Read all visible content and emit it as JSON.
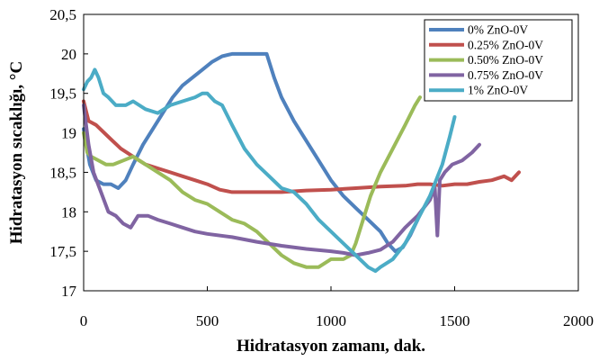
{
  "chart_data": {
    "type": "line",
    "title": "",
    "xlabel": "Hidratasyon zamanı, dak.",
    "ylabel": "Hidratasyon sıcaklığı, °C",
    "xlim": [
      0,
      2000
    ],
    "ylim": [
      17,
      20.5
    ],
    "xticks": [
      0,
      500,
      1000,
      1500,
      2000
    ],
    "yticks": [
      17,
      17.5,
      18,
      18.5,
      19,
      19.5,
      20,
      20.5
    ],
    "xtick_labels": [
      "0",
      "500",
      "1000",
      "1500",
      "2000"
    ],
    "ytick_labels": [
      "17",
      "17,5",
      "18",
      "18,5",
      "19",
      "19,5",
      "20",
      "20,5"
    ],
    "grid": false,
    "legend_position": "top-right",
    "series": [
      {
        "name": "0% ZnO-0V",
        "color": "#4F81BD",
        "x": [
          0,
          25,
          50,
          80,
          110,
          140,
          170,
          200,
          240,
          280,
          320,
          360,
          400,
          440,
          480,
          520,
          560,
          600,
          650,
          700,
          740,
          770,
          800,
          850,
          900,
          950,
          1000,
          1050,
          1100,
          1150,
          1200,
          1230,
          1260,
          1290,
          1320,
          1350
        ],
        "y": [
          19.05,
          18.6,
          18.4,
          18.35,
          18.35,
          18.3,
          18.4,
          18.6,
          18.85,
          19.05,
          19.25,
          19.45,
          19.6,
          19.7,
          19.8,
          19.9,
          19.97,
          20.0,
          20.0,
          20.0,
          20.0,
          19.7,
          19.45,
          19.15,
          18.9,
          18.65,
          18.4,
          18.2,
          18.05,
          17.9,
          17.75,
          17.6,
          17.5,
          17.55,
          17.7,
          17.9
        ]
      },
      {
        "name": "0.25% ZnO-0V",
        "color": "#C0504D",
        "x": [
          0,
          20,
          50,
          100,
          150,
          200,
          250,
          300,
          350,
          400,
          450,
          500,
          550,
          600,
          650,
          700,
          750,
          800,
          900,
          1000,
          1100,
          1200,
          1300,
          1350,
          1400,
          1450,
          1500,
          1550,
          1600,
          1650,
          1700,
          1730,
          1760
        ],
        "y": [
          19.4,
          19.15,
          19.1,
          18.95,
          18.8,
          18.7,
          18.6,
          18.55,
          18.5,
          18.45,
          18.4,
          18.35,
          18.28,
          18.25,
          18.25,
          18.25,
          18.25,
          18.25,
          18.27,
          18.28,
          18.3,
          18.32,
          18.33,
          18.35,
          18.35,
          18.33,
          18.35,
          18.35,
          18.38,
          18.4,
          18.45,
          18.4,
          18.5
        ]
      },
      {
        "name": "0.50% ZnO-0V",
        "color": "#9BBB59",
        "x": [
          0,
          15,
          30,
          60,
          90,
          120,
          160,
          200,
          250,
          300,
          350,
          400,
          450,
          500,
          550,
          600,
          650,
          700,
          750,
          800,
          850,
          900,
          950,
          1000,
          1050,
          1080,
          1100,
          1130,
          1160,
          1200,
          1250,
          1300,
          1340,
          1360
        ],
        "y": [
          19.0,
          18.75,
          18.7,
          18.65,
          18.6,
          18.6,
          18.65,
          18.7,
          18.6,
          18.5,
          18.4,
          18.25,
          18.15,
          18.1,
          18.0,
          17.9,
          17.85,
          17.75,
          17.6,
          17.45,
          17.35,
          17.3,
          17.3,
          17.4,
          17.4,
          17.45,
          17.6,
          17.9,
          18.2,
          18.5,
          18.8,
          19.1,
          19.35,
          19.45
        ]
      },
      {
        "name": "0.75% ZnO-0V",
        "color": "#8064A2",
        "x": [
          0,
          20,
          40,
          70,
          100,
          130,
          160,
          190,
          220,
          260,
          300,
          350,
          400,
          450,
          500,
          600,
          700,
          800,
          900,
          1000,
          1050,
          1100,
          1150,
          1200,
          1250,
          1300,
          1350,
          1400,
          1420,
          1430,
          1440,
          1460,
          1490,
          1530,
          1570,
          1600
        ],
        "y": [
          19.35,
          18.85,
          18.5,
          18.25,
          18.0,
          17.95,
          17.85,
          17.8,
          17.95,
          17.95,
          17.9,
          17.85,
          17.8,
          17.75,
          17.72,
          17.68,
          17.62,
          17.57,
          17.53,
          17.5,
          17.48,
          17.45,
          17.48,
          17.52,
          17.62,
          17.8,
          17.95,
          18.15,
          18.3,
          17.7,
          18.4,
          18.5,
          18.6,
          18.65,
          18.75,
          18.85
        ]
      },
      {
        "name": "1% ZnO-0V",
        "color": "#4BACC6",
        "x": [
          0,
          15,
          30,
          45,
          60,
          80,
          100,
          130,
          170,
          200,
          250,
          300,
          350,
          400,
          450,
          480,
          500,
          530,
          560,
          600,
          650,
          700,
          750,
          800,
          850,
          900,
          950,
          1000,
          1050,
          1100,
          1150,
          1180,
          1200,
          1250,
          1300,
          1350,
          1400,
          1450,
          1480,
          1500
        ],
        "y": [
          19.55,
          19.65,
          19.7,
          19.8,
          19.7,
          19.5,
          19.45,
          19.35,
          19.35,
          19.4,
          19.3,
          19.25,
          19.35,
          19.4,
          19.45,
          19.5,
          19.5,
          19.4,
          19.35,
          19.1,
          18.8,
          18.6,
          18.45,
          18.3,
          18.25,
          18.1,
          17.9,
          17.75,
          17.6,
          17.45,
          17.3,
          17.25,
          17.3,
          17.4,
          17.6,
          17.9,
          18.2,
          18.6,
          18.95,
          19.2
        ]
      }
    ]
  }
}
